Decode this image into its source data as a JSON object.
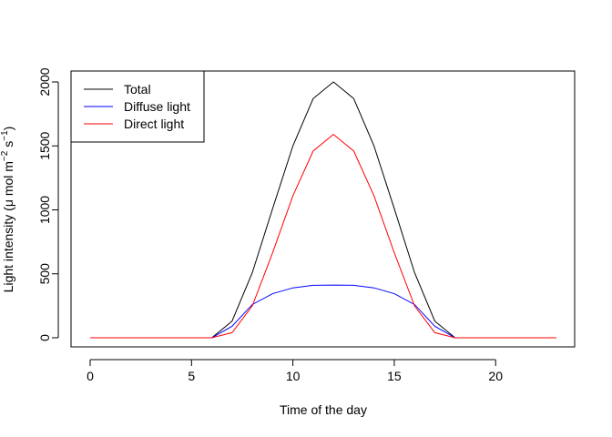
{
  "chart_data": {
    "type": "line",
    "title": "",
    "xlabel": "Time of the day",
    "ylabel_parts": {
      "main": "Light intensity (",
      "mu": "μ",
      "mid1": " mol m",
      "sup1": "−2",
      "mid2": " s",
      "sup2": "−1",
      "end": ")"
    },
    "xlim": [
      0,
      23
    ],
    "ylim": [
      0,
      2000
    ],
    "xticks": [
      0,
      5,
      10,
      15,
      20
    ],
    "yticks": [
      0,
      500,
      1000,
      1500,
      2000
    ],
    "x": [
      0,
      1,
      2,
      3,
      4,
      5,
      6,
      7,
      8,
      9,
      10,
      11,
      12,
      13,
      14,
      15,
      16,
      17,
      18,
      19,
      20,
      21,
      22,
      23
    ],
    "series": [
      {
        "name": "Total",
        "color": "#000000",
        "values": [
          0,
          0,
          0,
          0,
          0,
          0,
          0,
          130,
          510,
          1010,
          1500,
          1870,
          2000,
          1870,
          1500,
          1010,
          510,
          130,
          0,
          0,
          0,
          0,
          0,
          0
        ]
      },
      {
        "name": "Diffuse light",
        "color": "#0000ff",
        "values": [
          0,
          0,
          0,
          0,
          0,
          0,
          0,
          90,
          260,
          345,
          390,
          410,
          412,
          410,
          390,
          345,
          260,
          90,
          0,
          0,
          0,
          0,
          0,
          0
        ]
      },
      {
        "name": "Direct light",
        "color": "#ff0000",
        "values": [
          0,
          0,
          0,
          0,
          0,
          0,
          0,
          40,
          250,
          665,
          1110,
          1460,
          1590,
          1460,
          1110,
          665,
          250,
          40,
          0,
          0,
          0,
          0,
          0,
          0
        ]
      }
    ],
    "grid": false,
    "legend_position": "top-left"
  }
}
